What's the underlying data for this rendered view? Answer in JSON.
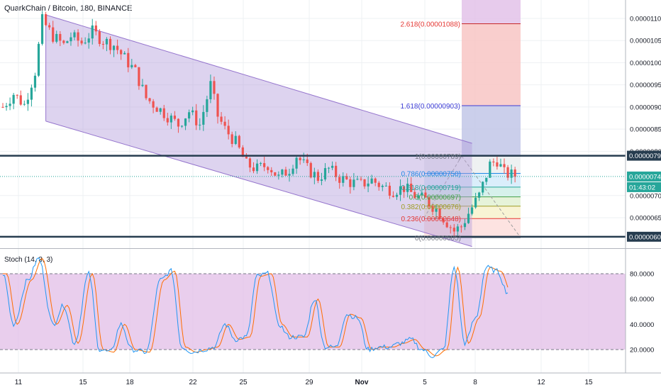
{
  "header": {
    "title": "QuarkChain / Bitcoin, 180, BINANCE"
  },
  "stoch": {
    "label": "Stoch (14, 3, 3)",
    "ticks": [
      "80.0000",
      "60.0000",
      "40.0000",
      "20.0000"
    ],
    "bands": [
      20,
      80
    ]
  },
  "price_axis": {
    "ticks": [
      "0.00001100",
      "0.00001050",
      "0.00001000",
      "0.00000950",
      "0.00000900",
      "0.00000850",
      "0.00000800",
      "0.00000700",
      "0.00000650"
    ],
    "badges": [
      {
        "text": "0.00000790",
        "kind": "line"
      },
      {
        "text": "0.00000743",
        "kind": "last"
      },
      {
        "text": "01:43:02",
        "kind": "timer"
      },
      {
        "text": "0.00000607",
        "kind": "line"
      }
    ]
  },
  "time_axis": {
    "ticks": [
      "11",
      "15",
      "18",
      "22",
      "25",
      "29",
      "Nov",
      "5",
      "8",
      "12",
      "15"
    ]
  },
  "fib_extension": [
    {
      "label": "2.618(0.00001088)",
      "color": "#e53935"
    },
    {
      "label": "1.618(0.00000903)",
      "color": "#3d3dd6"
    }
  ],
  "fib_retracement": [
    {
      "label": "1(0.00000789)",
      "color": "#787b86"
    },
    {
      "label": "0.786(0.00000750)",
      "color": "#1e88e5"
    },
    {
      "label": "0.618(0.00000719)",
      "color": "#26a69a"
    },
    {
      "label": "0.5(0.00000697)",
      "color": "#43a047"
    },
    {
      "label": "0.382(0.00000676)",
      "color": "#9e9d24"
    },
    {
      "label": "0.236(0.00000648)",
      "color": "#e53935"
    },
    {
      "label": "0(0.00000605)",
      "color": "#787b86"
    }
  ],
  "colors": {
    "up": "#26a69a",
    "down": "#ef5350",
    "channel": "#9575cd",
    "level_line": "#263c4f",
    "stoch_k": "#2196f3",
    "stoch_d": "#ff6d00",
    "stoch_bg": "#e1bee7"
  },
  "chart_data": {
    "type": "candlestick",
    "title": "QuarkChain / Bitcoin, 180, BINANCE",
    "interval": "180",
    "exchange": "BINANCE",
    "x_axis_dates": [
      "11",
      "15",
      "18",
      "22",
      "25",
      "29",
      "Nov",
      "5",
      "8",
      "12",
      "15"
    ],
    "y_range": [
      5.9e-06,
      1.12e-05
    ],
    "price_path": [
      [
        0,
        9e-06
      ],
      [
        3,
        9.3e-06
      ],
      [
        6,
        9.05e-06
      ],
      [
        9,
        9.8e-06
      ],
      [
        11,
        1.095e-05
      ],
      [
        14,
        1.06e-05
      ],
      [
        17,
        1.04e-05
      ],
      [
        19,
        1.06e-05
      ],
      [
        22,
        1.045e-05
      ],
      [
        25,
        1.07e-05
      ],
      [
        28,
        1.05e-05
      ],
      [
        31,
        1.04e-05
      ],
      [
        34,
        1.01e-05
      ],
      [
        37,
        9.8e-06
      ],
      [
        40,
        9.2e-06
      ],
      [
        43,
        9e-06
      ],
      [
        46,
        8.8e-06
      ],
      [
        49,
        8.6e-06
      ],
      [
        52,
        8.9e-06
      ],
      [
        55,
        8.6e-06
      ],
      [
        58,
        9.5e-06
      ],
      [
        60,
        8.8e-06
      ],
      [
        62,
        8.5e-06
      ],
      [
        65,
        8.2e-06
      ],
      [
        68,
        7.7e-06
      ],
      [
        71,
        7.6e-06
      ],
      [
        74,
        7.7e-06
      ],
      [
        77,
        7.4e-06
      ],
      [
        80,
        7.6e-06
      ],
      [
        82,
        7.9e-06
      ],
      [
        85,
        7.6e-06
      ],
      [
        88,
        7.4e-06
      ],
      [
        91,
        7.6e-06
      ],
      [
        94,
        7.4e-06
      ],
      [
        97,
        7.3e-06
      ],
      [
        100,
        7.25e-06
      ],
      [
        103,
        7.35e-06
      ],
      [
        106,
        7.2e-06
      ],
      [
        109,
        7.12e-06
      ],
      [
        112,
        7.18e-06
      ],
      [
        115,
        7e-06
      ],
      [
        118,
        6.9e-06
      ],
      [
        121,
        6.7e-06
      ],
      [
        124,
        6.4e-06
      ],
      [
        126,
        6.2e-06
      ],
      [
        128,
        6.3e-06
      ],
      [
        130,
        6.6e-06
      ],
      [
        133,
        7e-06
      ],
      [
        136,
        7.7e-06
      ],
      [
        138,
        7.8e-06
      ],
      [
        140,
        7.5e-06
      ],
      [
        143,
        7.45e-06
      ]
    ],
    "horizontal_levels": [
      7.9e-06,
      6.07e-06
    ],
    "last_price": 7.43e-06,
    "parallel_channel": {
      "upper": [
        [
          12,
          1.108e-05
        ],
        [
          131,
          8.18e-06
        ]
      ],
      "lower": [
        [
          12,
          8.68e-06
        ],
        [
          131,
          5.85e-06
        ]
      ]
    },
    "fib_extension": [
      {
        "ratio": 2.618,
        "price": 1.088e-05
      },
      {
        "ratio": 1.618,
        "price": 9.03e-06
      },
      {
        "ratio": 1,
        "price": 7.89e-06
      }
    ],
    "fib_retracement": [
      {
        "ratio": 1,
        "price": 7.89e-06
      },
      {
        "ratio": 0.786,
        "price": 7.5e-06
      },
      {
        "ratio": 0.618,
        "price": 7.19e-06
      },
      {
        "ratio": 0.5,
        "price": 6.97e-06
      },
      {
        "ratio": 0.382,
        "price": 6.76e-06
      },
      {
        "ratio": 0.236,
        "price": 6.48e-06
      },
      {
        "ratio": 0,
        "price": 6.05e-06
      }
    ],
    "stochastic": {
      "params": "14, 3, 3",
      "ylim": [
        0,
        100
      ],
      "bands": [
        20,
        80
      ],
      "k_path": [
        [
          0,
          80
        ],
        [
          3,
          40
        ],
        [
          7,
          75
        ],
        [
          10,
          92
        ],
        [
          14,
          40
        ],
        [
          17,
          55
        ],
        [
          20,
          25
        ],
        [
          24,
          80
        ],
        [
          27,
          20
        ],
        [
          30,
          18
        ],
        [
          33,
          40
        ],
        [
          36,
          20
        ],
        [
          40,
          18
        ],
        [
          44,
          75
        ],
        [
          47,
          82
        ],
        [
          50,
          22
        ],
        [
          53,
          18
        ],
        [
          56,
          20
        ],
        [
          59,
          22
        ],
        [
          62,
          40
        ],
        [
          65,
          28
        ],
        [
          68,
          30
        ],
        [
          71,
          78
        ],
        [
          74,
          80
        ],
        [
          77,
          40
        ],
        [
          80,
          30
        ],
        [
          84,
          30
        ],
        [
          87,
          60
        ],
        [
          90,
          22
        ],
        [
          93,
          22
        ],
        [
          96,
          48
        ],
        [
          99,
          45
        ],
        [
          102,
          20
        ],
        [
          105,
          22
        ],
        [
          108,
          22
        ],
        [
          111,
          25
        ],
        [
          114,
          28
        ],
        [
          117,
          20
        ],
        [
          120,
          15
        ],
        [
          123,
          20
        ],
        [
          126,
          85
        ],
        [
          129,
          25
        ],
        [
          132,
          45
        ],
        [
          135,
          85
        ],
        [
          138,
          82
        ],
        [
          141,
          65
        ]
      ]
    }
  }
}
